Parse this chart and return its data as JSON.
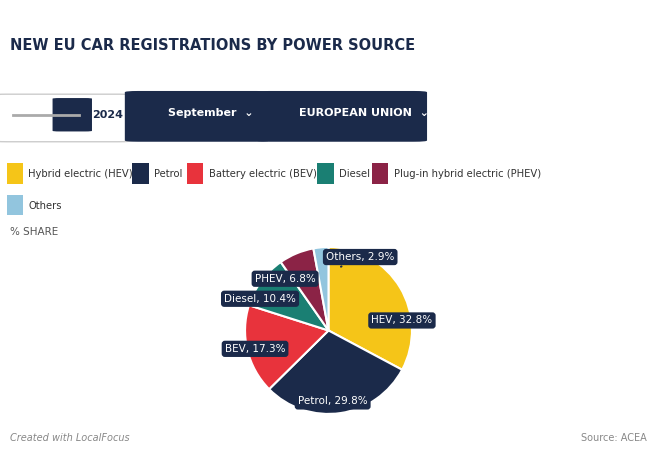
{
  "title": "NEW EU CAR REGISTRATIONS BY POWER SOURCE",
  "subtitle_label": "% SHARE",
  "filter_year": "2024",
  "filter_month": "September",
  "filter_region": "EUROPEAN UNION",
  "slices": [
    {
      "label": "HEV",
      "full_label": "Hybrid electric (HEV)",
      "value": 32.8,
      "color": "#F5C518"
    },
    {
      "label": "Petrol",
      "full_label": "Petrol",
      "value": 29.8,
      "color": "#1B2A4A"
    },
    {
      "label": "BEV",
      "full_label": "Battery electric (BEV)",
      "value": 17.3,
      "color": "#E8333C"
    },
    {
      "label": "Diesel",
      "full_label": "Diesel",
      "value": 10.4,
      "color": "#1A7F73"
    },
    {
      "label": "PHEV",
      "full_label": "Plug-in hybrid electric (PHEV)",
      "value": 6.8,
      "color": "#8B2346"
    },
    {
      "label": "Others",
      "full_label": "Others",
      "value": 2.9,
      "color": "#92C5DE"
    }
  ],
  "background_color": "#FFFFFF",
  "label_box_color": "#1B2A4A",
  "label_text_color": "#FFFFFF",
  "title_color": "#1B2A4A",
  "legend_colors": [
    "#F5C518",
    "#1B2A4A",
    "#E8333C",
    "#1A7F73",
    "#8B2346",
    "#92C5DE"
  ],
  "footer_left": "Created with LocalFocus",
  "footer_right": "Source: ACEA"
}
